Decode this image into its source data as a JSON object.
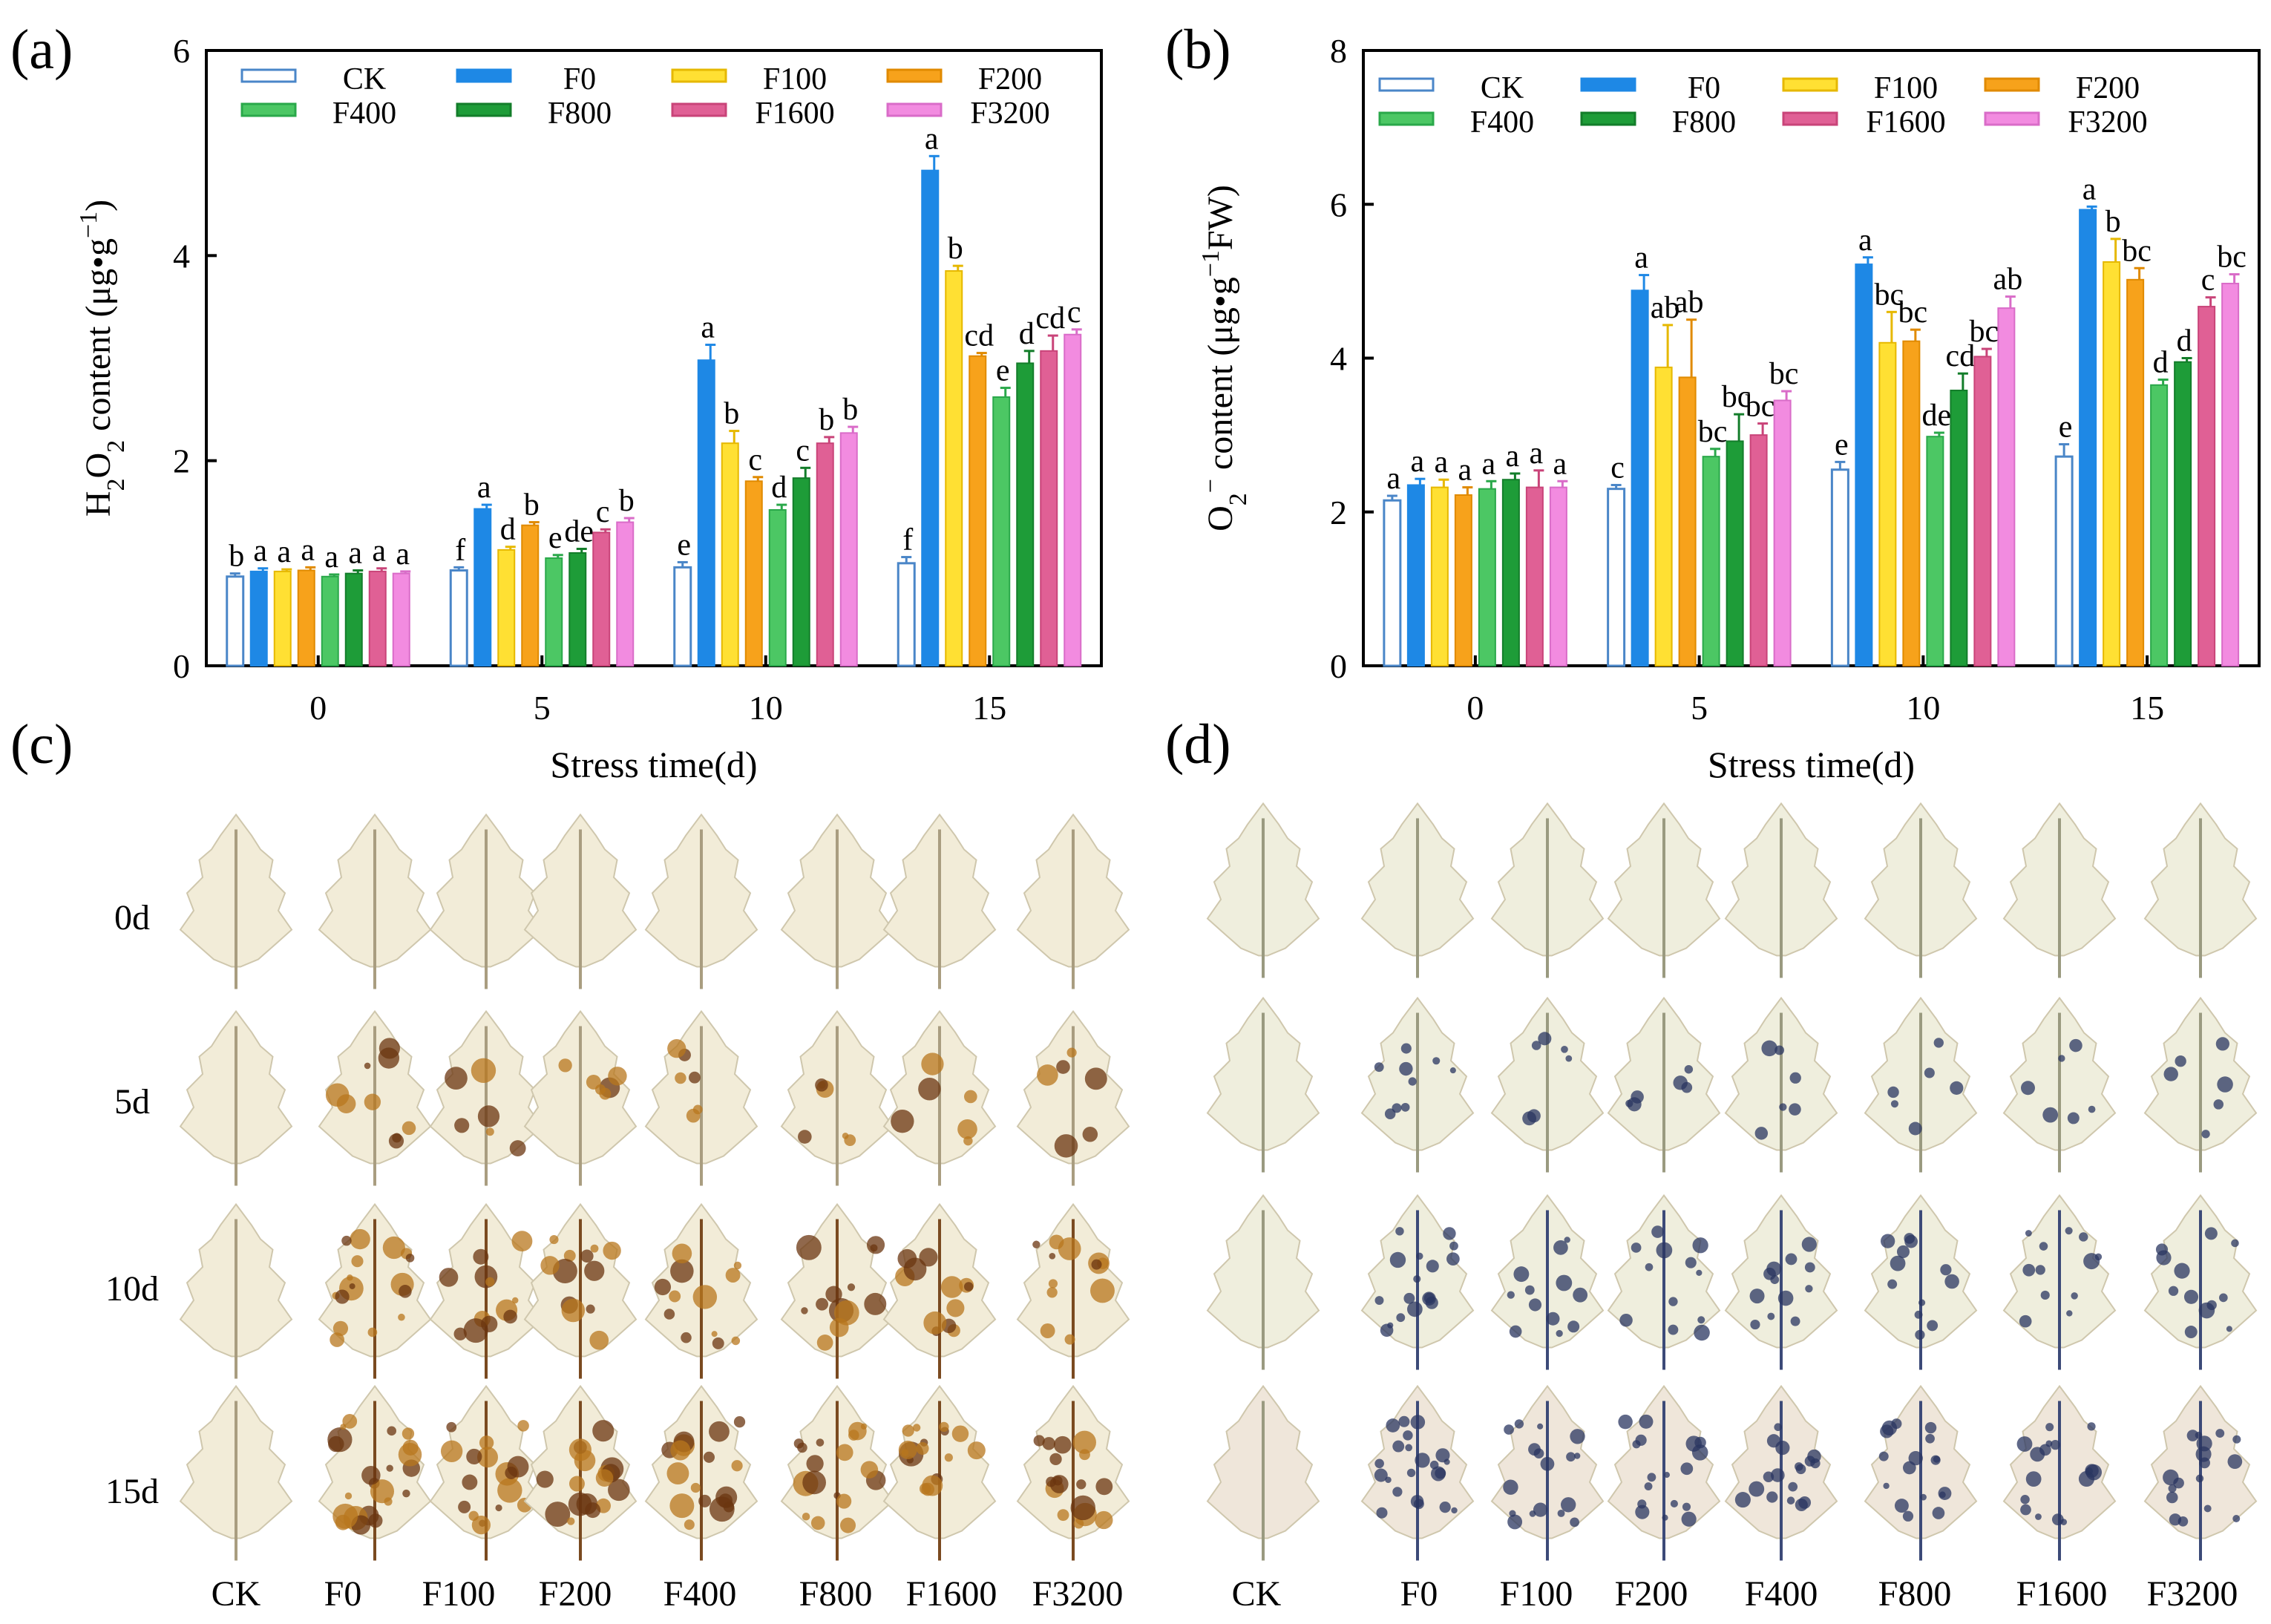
{
  "panel_labels": [
    "(a)",
    "(b)",
    "(c)",
    "(d)"
  ],
  "groups": [
    {
      "name": "CK",
      "color": "#4a86c8",
      "fill": "#ffffff"
    },
    {
      "name": "F0",
      "color": "#1e88e5",
      "fill": "#1e88e5"
    },
    {
      "name": "F100",
      "color": "#e6b800",
      "fill": "#ffe033"
    },
    {
      "name": "F200",
      "color": "#e08a00",
      "fill": "#f7a21b"
    },
    {
      "name": "F400",
      "color": "#2aa84a",
      "fill": "#4cc764"
    },
    {
      "name": "F800",
      "color": "#137d2a",
      "fill": "#1e9c38"
    },
    {
      "name": "F1600",
      "color": "#c94479",
      "fill": "#e06095"
    },
    {
      "name": "F3200",
      "color": "#d96cc8",
      "fill": "#f28be0"
    }
  ],
  "chart_data": [
    {
      "type": "bar",
      "panel": "(a)",
      "title": "",
      "xlabel": "Stress time(d)",
      "ylabel": "H2O2 content (μg•g−1)",
      "ylabel_parts": {
        "main": "H",
        "sub1": "2",
        "mid": "O",
        "sub2": "2",
        "rest": " content (μg•g",
        "sup": "−1",
        "end": ")"
      },
      "categories": [
        "0",
        "5",
        "10",
        "15"
      ],
      "ylim": [
        0,
        6
      ],
      "yticks": [
        "0",
        "2",
        "4",
        "6"
      ],
      "legend_position": "top",
      "series": [
        {
          "name": "CK",
          "values": [
            0.87,
            0.93,
            0.96,
            1.0
          ],
          "errors": [
            0.03,
            0.03,
            0.05,
            0.06
          ],
          "letters": [
            "b",
            "f",
            "e",
            "f"
          ]
        },
        {
          "name": "F0",
          "values": [
            0.92,
            1.53,
            2.98,
            4.83
          ],
          "errors": [
            0.03,
            0.04,
            0.15,
            0.14
          ],
          "letters": [
            "a",
            "a",
            "a",
            "a"
          ]
        },
        {
          "name": "F100",
          "values": [
            0.92,
            1.13,
            2.17,
            3.85
          ],
          "errors": [
            0.02,
            0.03,
            0.12,
            0.05
          ],
          "letters": [
            "a",
            "d",
            "b",
            "b"
          ]
        },
        {
          "name": "F200",
          "values": [
            0.93,
            1.37,
            1.8,
            3.02
          ],
          "errors": [
            0.03,
            0.03,
            0.04,
            0.03
          ],
          "letters": [
            "a",
            "b",
            "c",
            "cd"
          ]
        },
        {
          "name": "F400",
          "values": [
            0.87,
            1.05,
            1.52,
            2.62
          ],
          "errors": [
            0.02,
            0.03,
            0.05,
            0.09
          ],
          "letters": [
            "a",
            "e",
            "d",
            "e"
          ]
        },
        {
          "name": "F800",
          "values": [
            0.9,
            1.1,
            1.83,
            2.95
          ],
          "errors": [
            0.03,
            0.04,
            0.1,
            0.12
          ],
          "letters": [
            "a",
            "de",
            "c",
            "d"
          ]
        },
        {
          "name": "F1600",
          "values": [
            0.92,
            1.3,
            2.17,
            3.07
          ],
          "errors": [
            0.03,
            0.03,
            0.06,
            0.15
          ],
          "letters": [
            "a",
            "c",
            "b",
            "cd"
          ]
        },
        {
          "name": "F3200",
          "values": [
            0.9,
            1.4,
            2.27,
            3.23
          ],
          "errors": [
            0.02,
            0.04,
            0.06,
            0.05
          ],
          "letters": [
            "a",
            "b",
            "b",
            "c"
          ]
        }
      ]
    },
    {
      "type": "bar",
      "panel": "(b)",
      "title": "",
      "xlabel": "Stress time(d)",
      "ylabel": "O2− content (μg•g−1FW)",
      "ylabel_parts": {
        "main": "O",
        "sub1": "2",
        "sup0": "−",
        "rest": " content (μg•g",
        "sup": "−1",
        "end": "FW)"
      },
      "categories": [
        "0",
        "5",
        "10",
        "15"
      ],
      "ylim": [
        0,
        8
      ],
      "yticks": [
        "0",
        "2",
        "4",
        "6",
        "8"
      ],
      "legend_position": "top",
      "series": [
        {
          "name": "CK",
          "values": [
            2.15,
            2.3,
            2.55,
            2.72
          ],
          "errors": [
            0.06,
            0.05,
            0.1,
            0.16
          ],
          "letters": [
            "a",
            "c",
            "e",
            "e"
          ]
        },
        {
          "name": "F0",
          "values": [
            2.35,
            4.88,
            5.22,
            5.93
          ],
          "errors": [
            0.08,
            0.2,
            0.09,
            0.04
          ],
          "letters": [
            "a",
            "a",
            "a",
            "a"
          ]
        },
        {
          "name": "F100",
          "values": [
            2.32,
            3.88,
            4.2,
            5.25
          ],
          "errors": [
            0.1,
            0.55,
            0.4,
            0.3
          ],
          "letters": [
            "a",
            "ab",
            "bc",
            "b"
          ]
        },
        {
          "name": "F200",
          "values": [
            2.22,
            3.75,
            4.22,
            5.02
          ],
          "errors": [
            0.1,
            0.75,
            0.15,
            0.15
          ],
          "letters": [
            "a",
            "ab",
            "bc",
            "bc"
          ]
        },
        {
          "name": "F400",
          "values": [
            2.3,
            2.72,
            2.98,
            3.65
          ],
          "errors": [
            0.1,
            0.1,
            0.05,
            0.07
          ],
          "letters": [
            "a",
            "bc",
            "de",
            "d"
          ]
        },
        {
          "name": "F800",
          "values": [
            2.42,
            2.92,
            3.58,
            3.95
          ],
          "errors": [
            0.08,
            0.35,
            0.22,
            0.05
          ],
          "letters": [
            "a",
            "bc",
            "cd",
            "d"
          ]
        },
        {
          "name": "F1600",
          "values": [
            2.32,
            3.0,
            4.02,
            4.67
          ],
          "errors": [
            0.22,
            0.15,
            0.1,
            0.12
          ],
          "letters": [
            "a",
            "bc",
            "bc",
            "c"
          ]
        },
        {
          "name": "F3200",
          "values": [
            2.32,
            3.45,
            4.65,
            4.97
          ],
          "errors": [
            0.08,
            0.12,
            0.15,
            0.12
          ],
          "letters": [
            "a",
            "bc",
            "ab",
            "bc"
          ]
        }
      ]
    }
  ],
  "photo_panels": {
    "c": {
      "stain": "brown",
      "rows": [
        "0d",
        "5d",
        "10d",
        "15d"
      ],
      "columns": [
        "CK",
        "F0",
        "F100",
        "F200",
        "F400",
        "F800",
        "F1600",
        "F3200"
      ]
    },
    "d": {
      "stain": "blue",
      "columns": [
        "CK",
        "F0",
        "F100",
        "F200",
        "F400",
        "F800",
        "F1600",
        "F3200"
      ]
    }
  }
}
